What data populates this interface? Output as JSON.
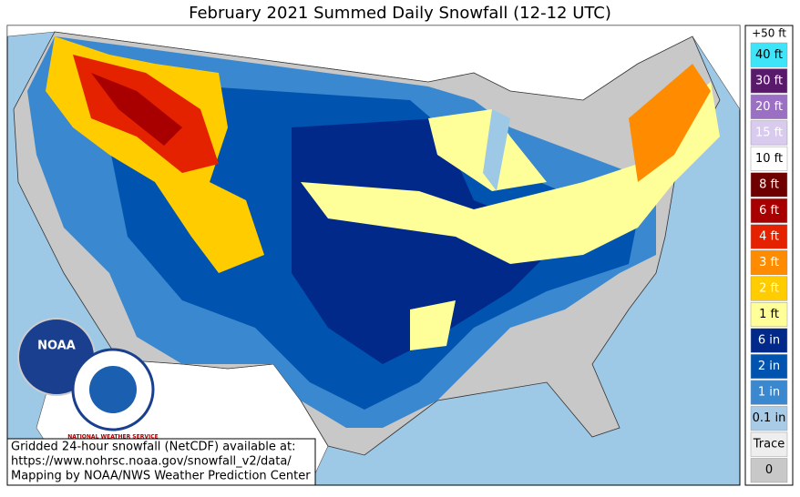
{
  "header": {
    "title": "February 2021 Summed Daily Snowfall (12-12 UTC)"
  },
  "legend": {
    "top_label": "+50 ft",
    "entries": [
      {
        "label": "40 ft",
        "color": "#3ee4f7",
        "text_color": "#000000"
      },
      {
        "label": "30 ft",
        "color": "#5a1a6b",
        "text_color": "#ffffff"
      },
      {
        "label": "20 ft",
        "color": "#9a6fc4",
        "text_color": "#ffffff"
      },
      {
        "label": "15 ft",
        "color": "#d8cbee",
        "text_color": "#ffffff"
      },
      {
        "label": "10 ft",
        "color": "#ffffff",
        "text_color": "#000000"
      },
      {
        "label": "8 ft",
        "color": "#6e0000",
        "text_color": "#ffffff"
      },
      {
        "label": "6 ft",
        "color": "#a80000",
        "text_color": "#ffffff"
      },
      {
        "label": "4 ft",
        "color": "#e52200",
        "text_color": "#ffffff"
      },
      {
        "label": "3 ft",
        "color": "#ff8c00",
        "text_color": "#ffffff"
      },
      {
        "label": "2 ft",
        "color": "#ffcc00",
        "text_color": "#ffffff"
      },
      {
        "label": "1 ft",
        "color": "#ffff99",
        "text_color": "#000000"
      },
      {
        "label": "6 in",
        "color": "#00298a",
        "text_color": "#ffffff"
      },
      {
        "label": "2 in",
        "color": "#0054b0",
        "text_color": "#ffffff"
      },
      {
        "label": "1 in",
        "color": "#3a88cf",
        "text_color": "#ffffff"
      },
      {
        "label": "0.1 in",
        "color": "#a8cbe8",
        "text_color": "#000000"
      },
      {
        "label": "Trace",
        "color": "#eeeeee",
        "text_color": "#000000"
      },
      {
        "label": "0",
        "color": "#c8c8c8",
        "text_color": "#000000"
      }
    ]
  },
  "footer": {
    "lines": [
      "Gridded 24-hour snowfall (NetCDF) available at:",
      "https://www.nohrsc.noaa.gov/snowfall_v2/data/",
      "Mapping by NOAA/NWS Weather Prediction Center"
    ]
  },
  "logos": {
    "noaa": "NOAA",
    "nws": "NATIONAL WEATHER SERVICE"
  }
}
